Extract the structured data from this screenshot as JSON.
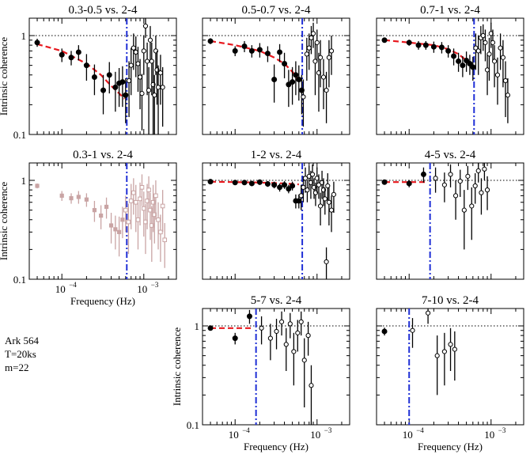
{
  "ytick_labels": [
    "0.1",
    "1"
  ],
  "xtick_labels": [
    "10",
    "−4",
    "10",
    "−3"
  ],
  "annotation": {
    "source": "Ark 564",
    "segment": "T=20ks",
    "bins": "m=22"
  },
  "colors": {
    "model": "#e8191f",
    "cutoff": "#1f2fd6",
    "faded": "#c9a4a4",
    "points": "#000000"
  },
  "chart_data": [
    {
      "type": "scatter",
      "title": "0.3-0.5 vs. 2-4",
      "ylabel": "Intrinsic coherence",
      "xlabel": "",
      "xscale": "log",
      "yscale": "log",
      "xlim": [
        4e-05,
        0.0025
      ],
      "ylim": [
        0.1,
        1.5
      ],
      "reference_line": 1,
      "cutoff_frequency": 0.00062,
      "model": {
        "x": [
          5e-05,
          0.0001,
          0.0002,
          0.0003,
          0.0004,
          0.0005,
          0.00058
        ],
        "y": [
          0.82,
          0.7,
          0.52,
          0.4,
          0.31,
          0.26,
          0.23
        ]
      },
      "series": [
        {
          "style": "filled",
          "x": [
            5e-05,
            0.0001,
            0.00013,
            0.00016,
            0.0002,
            0.00025,
            0.00032,
            0.00038,
            0.00045,
            0.0005,
            0.00055,
            0.0006
          ],
          "y": [
            0.85,
            0.64,
            0.6,
            0.68,
            0.5,
            0.38,
            0.28,
            0.4,
            0.3,
            0.33,
            0.34,
            0.25
          ],
          "err": [
            0.08,
            0.1,
            0.1,
            0.12,
            0.15,
            0.13,
            0.12,
            0.14,
            0.13,
            0.14,
            0.15,
            0.12
          ]
        },
        {
          "style": "open",
          "x": [
            0.00066,
            0.0007,
            0.00075,
            0.0008,
            0.00085,
            0.0009,
            0.00095,
            0.001,
            0.00105,
            0.0011,
            0.00115,
            0.0012,
            0.00125,
            0.0013,
            0.00135,
            0.0014,
            0.00145,
            0.0015,
            0.0016,
            0.0017
          ],
          "y": [
            0.35,
            0.5,
            0.75,
            0.68,
            0.52,
            0.38,
            0.26,
            0.7,
            1.25,
            0.55,
            0.28,
            0.9,
            0.55,
            0.32,
            0.25,
            0.7,
            0.45,
            0.3,
            0.42,
            0.3
          ],
          "err": [
            0.2,
            0.25,
            0.3,
            0.3,
            0.25,
            0.2,
            0.15,
            0.3,
            0.3,
            0.3,
            0.2,
            0.35,
            0.3,
            0.22,
            0.15,
            0.3,
            0.25,
            0.2,
            0.22,
            0.18
          ]
        }
      ]
    },
    {
      "type": "scatter",
      "title": "0.5-0.7 vs. 2-4",
      "ylabel": "",
      "xlabel": "",
      "xscale": "log",
      "yscale": "log",
      "xlim": [
        4e-05,
        0.0025
      ],
      "ylim": [
        0.1,
        1.5
      ],
      "reference_line": 1,
      "cutoff_frequency": 0.00066,
      "model": {
        "x": [
          5e-05,
          0.0001,
          0.0002,
          0.0003,
          0.0004,
          0.0005,
          0.0006
        ],
        "y": [
          0.88,
          0.8,
          0.7,
          0.6,
          0.52,
          0.43,
          0.36
        ]
      },
      "series": [
        {
          "style": "filled",
          "x": [
            5e-05,
            0.0001,
            0.00013,
            0.00016,
            0.0002,
            0.00025,
            0.0003,
            0.00035,
            0.0004,
            0.00045,
            0.0005,
            0.00055,
            0.0006,
            0.00065
          ],
          "y": [
            0.88,
            0.7,
            0.78,
            0.7,
            0.72,
            0.66,
            0.36,
            0.68,
            0.52,
            0.32,
            0.34,
            0.4,
            0.36,
            0.28
          ],
          "err": [
            0.06,
            0.08,
            0.1,
            0.1,
            0.12,
            0.12,
            0.15,
            0.14,
            0.15,
            0.13,
            0.14,
            0.15,
            0.14,
            0.12
          ]
        },
        {
          "style": "open",
          "x": [
            0.00068,
            0.00075,
            0.0008,
            0.00085,
            0.0009,
            0.00095,
            0.001,
            0.00105,
            0.0011,
            0.0012,
            0.0013,
            0.0014,
            0.0015
          ],
          "y": [
            0.24,
            0.65,
            0.75,
            0.95,
            1.05,
            0.55,
            0.85,
            0.42,
            0.6,
            0.38,
            0.28,
            0.6,
            0.7
          ],
          "err": [
            0.12,
            0.3,
            0.3,
            0.3,
            0.3,
            0.3,
            0.3,
            0.25,
            0.3,
            0.2,
            0.15,
            0.3,
            0.3
          ]
        }
      ]
    },
    {
      "type": "scatter",
      "title": "0.7-1 vs. 2-4",
      "ylabel": "",
      "xlabel": "",
      "xscale": "log",
      "yscale": "log",
      "xlim": [
        4e-05,
        0.0025
      ],
      "ylim": [
        0.1,
        1.5
      ],
      "reference_line": 1,
      "cutoff_frequency": 0.00062,
      "model": {
        "x": [
          5e-05,
          0.0001,
          0.0002,
          0.0003,
          0.0004,
          0.0005,
          0.0006
        ],
        "y": [
          0.9,
          0.85,
          0.8,
          0.73,
          0.65,
          0.56,
          0.5
        ]
      },
      "series": [
        {
          "style": "filled",
          "x": [
            5e-05,
            0.0001,
            0.00013,
            0.00016,
            0.0002,
            0.00025,
            0.0003,
            0.00035,
            0.0004,
            0.00045,
            0.0005,
            0.00055,
            0.0006
          ],
          "y": [
            0.9,
            0.85,
            0.8,
            0.8,
            0.77,
            0.76,
            0.7,
            0.62,
            0.55,
            0.5,
            0.56,
            0.52,
            0.48
          ],
          "err": [
            0.05,
            0.06,
            0.08,
            0.08,
            0.1,
            0.1,
            0.1,
            0.12,
            0.12,
            0.12,
            0.13,
            0.12,
            0.13
          ]
        },
        {
          "style": "open",
          "x": [
            0.00065,
            0.0007,
            0.00075,
            0.0008,
            0.00085,
            0.0009,
            0.00095,
            0.001,
            0.00105,
            0.0011,
            0.0012,
            0.0013,
            0.0014,
            0.0015,
            0.0016
          ],
          "y": [
            0.75,
            0.7,
            0.95,
            1.0,
            0.85,
            0.45,
            0.65,
            1.05,
            0.85,
            0.55,
            0.4,
            0.75,
            0.6,
            0.35,
            0.25
          ],
          "err": [
            0.3,
            0.3,
            0.3,
            0.3,
            0.3,
            0.2,
            0.3,
            0.3,
            0.3,
            0.25,
            0.2,
            0.3,
            0.3,
            0.2,
            0.12
          ]
        }
      ]
    },
    {
      "type": "scatter",
      "title": "0.3-1 vs. 2-4",
      "ylabel": "Intrinsic coherence",
      "xlabel": "Frequency (Hz)",
      "xscale": "log",
      "yscale": "log",
      "xlim": [
        4e-05,
        0.0025
      ],
      "ylim": [
        0.1,
        1.5
      ],
      "reference_line": null,
      "cutoff_frequency": 0.00062,
      "faded": true,
      "model": null,
      "series": [
        {
          "style": "filled-square",
          "x": [
            5e-05,
            0.0001,
            0.00013,
            0.00016,
            0.0002,
            0.00025,
            0.0003,
            0.00035,
            0.0004,
            0.00045,
            0.0005,
            0.00055
          ],
          "y": [
            0.88,
            0.7,
            0.66,
            0.68,
            0.64,
            0.5,
            0.44,
            0.54,
            0.35,
            0.32,
            0.3,
            0.4
          ],
          "err": [
            0.05,
            0.08,
            0.08,
            0.1,
            0.1,
            0.12,
            0.12,
            0.13,
            0.12,
            0.12,
            0.13,
            0.14
          ]
        },
        {
          "style": "open-square",
          "x": [
            0.0006,
            0.00065,
            0.0007,
            0.00075,
            0.0008,
            0.00085,
            0.0009,
            0.00095,
            0.001,
            0.00105,
            0.0011,
            0.00115,
            0.0012,
            0.00125,
            0.0013,
            0.00135,
            0.0014,
            0.0015,
            0.0016,
            0.0017,
            0.0018
          ],
          "y": [
            0.5,
            0.38,
            0.62,
            0.75,
            0.6,
            0.4,
            0.65,
            0.85,
            0.52,
            0.38,
            0.62,
            0.8,
            0.5,
            0.35,
            0.6,
            0.45,
            0.7,
            0.4,
            0.3,
            0.55,
            0.25
          ],
          "err": [
            0.2,
            0.2,
            0.3,
            0.3,
            0.3,
            0.2,
            0.3,
            0.3,
            0.25,
            0.2,
            0.3,
            0.3,
            0.25,
            0.2,
            0.3,
            0.22,
            0.3,
            0.2,
            0.15,
            0.25,
            0.12
          ]
        }
      ]
    },
    {
      "type": "scatter",
      "title": "1-2 vs. 2-4",
      "ylabel": "",
      "xlabel": "",
      "xscale": "log",
      "yscale": "log",
      "xlim": [
        4e-05,
        0.0025
      ],
      "ylim": [
        0.1,
        1.5
      ],
      "reference_line": 1,
      "cutoff_frequency": 0.00066,
      "model": {
        "x": [
          5e-05,
          0.0001,
          0.0002,
          0.0003,
          0.0004,
          0.0005,
          0.0006
        ],
        "y": [
          0.97,
          0.96,
          0.95,
          0.94,
          0.93,
          0.92,
          0.91
        ]
      },
      "series": [
        {
          "style": "filled",
          "x": [
            5e-05,
            0.0001,
            0.00013,
            0.00016,
            0.0002,
            0.00025,
            0.0003,
            0.00035,
            0.0004,
            0.00045,
            0.0005,
            0.00055,
            0.0006
          ],
          "y": [
            0.97,
            0.95,
            0.95,
            0.93,
            0.96,
            0.92,
            0.9,
            0.85,
            0.9,
            0.82,
            0.88,
            0.62,
            0.62
          ],
          "err": [
            0.03,
            0.04,
            0.05,
            0.05,
            0.06,
            0.06,
            0.07,
            0.08,
            0.08,
            0.08,
            0.09,
            0.1,
            0.1
          ]
        },
        {
          "style": "open",
          "x": [
            0.00064,
            0.00068,
            0.00072,
            0.00076,
            0.0008,
            0.00084,
            0.00088,
            0.00092,
            0.00096,
            0.001,
            0.00105,
            0.0011,
            0.00115,
            0.0012,
            0.00125,
            0.0013,
            0.00135,
            0.0014,
            0.0015,
            0.0016
          ],
          "y": [
            0.7,
            0.85,
            1.05,
            0.8,
            1.1,
            0.95,
            1.15,
            0.85,
            0.75,
            1.05,
            0.9,
            0.55,
            0.95,
            0.8,
            0.65,
            0.15,
            0.88,
            0.6,
            0.5,
            0.72
          ],
          "err": [
            0.2,
            0.25,
            0.3,
            0.2,
            0.3,
            0.3,
            0.3,
            0.2,
            0.2,
            0.3,
            0.25,
            0.2,
            0.3,
            0.25,
            0.2,
            0.06,
            0.3,
            0.25,
            0.2,
            0.25
          ]
        }
      ]
    },
    {
      "type": "scatter",
      "title": "4-5 vs. 2-4",
      "ylabel": "",
      "xlabel": "",
      "xscale": "log",
      "yscale": "log",
      "xlim": [
        4e-05,
        0.0025
      ],
      "ylim": [
        0.1,
        1.5
      ],
      "reference_line": 1,
      "cutoff_frequency": 0.00018,
      "model": {
        "x": [
          5e-05,
          0.00016
        ],
        "y": [
          0.96,
          0.96
        ]
      },
      "series": [
        {
          "style": "filled",
          "x": [
            5e-05,
            0.0001,
            0.00015
          ],
          "y": [
            0.96,
            0.93,
            1.15
          ],
          "err": [
            0.04,
            0.08,
            0.2
          ]
        },
        {
          "style": "open",
          "x": [
            0.00021,
            0.00027,
            0.00032,
            0.00037,
            0.00042,
            0.00047,
            0.00052,
            0.00058,
            0.00064,
            0.0007,
            0.00076,
            0.00083,
            0.0009
          ],
          "y": [
            1.05,
            0.9,
            1.15,
            0.7,
            0.98,
            0.5,
            1.1,
            0.55,
            0.88,
            1.25,
            0.75,
            1.3,
            0.8
          ],
          "err": [
            0.3,
            0.3,
            0.3,
            0.3,
            0.3,
            0.3,
            0.3,
            0.3,
            0.3,
            0.3,
            0.3,
            0.3,
            0.3
          ]
        }
      ]
    },
    {
      "type": "scatter",
      "title": "5-7 vs. 2-4",
      "ylabel": "Intrinsic coherence",
      "xlabel": "Frequency (Hz)",
      "xscale": "log",
      "yscale": "log",
      "xlim": [
        4e-05,
        0.0025
      ],
      "ylim": [
        0.1,
        1.5
      ],
      "reference_line": 1,
      "cutoff_frequency": 0.00018,
      "model": {
        "x": [
          5e-05,
          0.00016
        ],
        "y": [
          0.95,
          0.95
        ]
      },
      "series": [
        {
          "style": "filled",
          "x": [
            5e-05,
            0.0001,
            0.00015
          ],
          "y": [
            0.95,
            0.75,
            1.25
          ],
          "err": [
            0.04,
            0.1,
            0.2
          ]
        },
        {
          "style": "open",
          "x": [
            0.00021,
            0.00027,
            0.00032,
            0.00037,
            0.00042,
            0.00047,
            0.00052,
            0.00058,
            0.00064,
            0.0007,
            0.00078,
            0.00085
          ],
          "y": [
            0.95,
            0.75,
            0.88,
            1.1,
            0.65,
            1.05,
            0.55,
            0.85,
            1.1,
            0.45,
            0.8,
            0.25
          ],
          "err": [
            0.3,
            0.3,
            0.3,
            0.3,
            0.3,
            0.3,
            0.3,
            0.3,
            0.3,
            0.3,
            0.3,
            0.15
          ]
        }
      ]
    },
    {
      "type": "scatter",
      "title": "7-10 vs. 2-4",
      "ylabel": "",
      "xlabel": "Frequency (Hz)",
      "xscale": "log",
      "yscale": "log",
      "xlim": [
        4e-05,
        0.0025
      ],
      "ylim": [
        0.1,
        1.5
      ],
      "reference_line": 1,
      "cutoff_frequency": 0.0001,
      "model": null,
      "series": [
        {
          "style": "filled",
          "x": [
            5e-05
          ],
          "y": [
            0.88
          ],
          "err": [
            0.08
          ]
        },
        {
          "style": "open",
          "x": [
            0.00011,
            0.00017,
            0.00022,
            0.00027,
            0.00032,
            0.00036
          ],
          "y": [
            0.9,
            1.35,
            0.5,
            0.55,
            0.65,
            0.58
          ],
          "err": [
            0.3,
            0.3,
            0.3,
            0.3,
            0.3,
            0.3
          ]
        }
      ]
    }
  ]
}
